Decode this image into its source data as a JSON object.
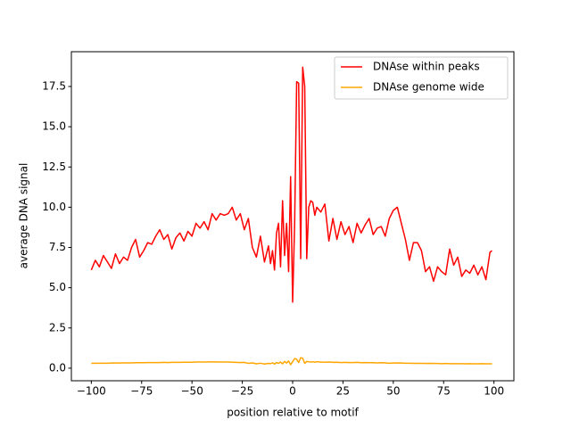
{
  "chart_data": {
    "type": "line",
    "xlabel": "position relative to motif",
    "ylabel": "average DNA signal",
    "x": [
      -100,
      -98,
      -96,
      -94,
      -92,
      -90,
      -88,
      -86,
      -84,
      -82,
      -80,
      -78,
      -76,
      -74,
      -72,
      -70,
      -68,
      -66,
      -64,
      -62,
      -60,
      -58,
      -56,
      -54,
      -52,
      -50,
      -48,
      -46,
      -44,
      -42,
      -40,
      -38,
      -36,
      -34,
      -32,
      -30,
      -28,
      -26,
      -24,
      -22,
      -20,
      -18,
      -16,
      -14,
      -12,
      -11,
      -10,
      -9,
      -8,
      -7,
      -6,
      -5,
      -4,
      -3,
      -2,
      -1,
      0,
      1,
      2,
      3,
      4,
      5,
      6,
      7,
      8,
      9,
      10,
      11,
      12,
      14,
      16,
      18,
      20,
      22,
      24,
      26,
      28,
      30,
      32,
      34,
      36,
      38,
      40,
      42,
      44,
      46,
      48,
      50,
      52,
      54,
      56,
      58,
      60,
      62,
      64,
      66,
      68,
      70,
      72,
      74,
      76,
      78,
      80,
      82,
      84,
      86,
      88,
      90,
      92,
      94,
      96,
      98,
      99
    ],
    "series": [
      {
        "name": "DNAse within peaks",
        "color": "#ff0000",
        "values": [
          6.1,
          6.7,
          6.3,
          7.0,
          6.6,
          6.2,
          7.1,
          6.5,
          6.9,
          6.7,
          7.5,
          8.0,
          6.9,
          7.3,
          7.8,
          7.7,
          8.2,
          8.6,
          8.0,
          8.3,
          7.4,
          8.1,
          8.4,
          7.9,
          8.5,
          8.2,
          9.0,
          8.7,
          9.1,
          8.6,
          9.6,
          9.2,
          9.6,
          9.5,
          9.6,
          10.0,
          9.2,
          9.6,
          8.6,
          9.3,
          7.5,
          6.9,
          8.2,
          6.6,
          7.6,
          6.5,
          7.3,
          6.1,
          8.4,
          9.0,
          6.3,
          10.4,
          7.0,
          9.0,
          6.0,
          11.9,
          4.1,
          9.0,
          17.8,
          17.7,
          6.8,
          18.7,
          17.5,
          6.8,
          10.0,
          10.4,
          10.3,
          9.5,
          10.0,
          9.7,
          10.2,
          7.9,
          9.3,
          8.0,
          9.1,
          8.3,
          8.8,
          7.8,
          9.0,
          8.4,
          8.9,
          9.3,
          8.3,
          8.7,
          8.8,
          8.2,
          9.3,
          9.8,
          10.0,
          9.0,
          8.0,
          6.7,
          7.8,
          7.8,
          7.3,
          6.0,
          6.3,
          5.4,
          6.3,
          6.0,
          5.8,
          7.4,
          6.4,
          6.9,
          5.7,
          6.1,
          5.9,
          6.4,
          5.8,
          6.3,
          5.5,
          7.2,
          7.3
        ]
      },
      {
        "name": "DNAse genome wide",
        "color": "#ffa500",
        "values": [
          0.3,
          0.31,
          0.31,
          0.31,
          0.31,
          0.32,
          0.32,
          0.32,
          0.33,
          0.33,
          0.33,
          0.34,
          0.34,
          0.34,
          0.35,
          0.35,
          0.35,
          0.35,
          0.36,
          0.35,
          0.36,
          0.36,
          0.36,
          0.37,
          0.37,
          0.37,
          0.38,
          0.38,
          0.38,
          0.39,
          0.39,
          0.39,
          0.38,
          0.38,
          0.38,
          0.37,
          0.36,
          0.35,
          0.36,
          0.3,
          0.33,
          0.27,
          0.31,
          0.26,
          0.3,
          0.28,
          0.33,
          0.26,
          0.35,
          0.3,
          0.38,
          0.27,
          0.42,
          0.32,
          0.45,
          0.22,
          0.4,
          0.6,
          0.55,
          0.35,
          0.65,
          0.62,
          0.3,
          0.42,
          0.4,
          0.38,
          0.4,
          0.37,
          0.4,
          0.38,
          0.37,
          0.38,
          0.36,
          0.37,
          0.35,
          0.36,
          0.35,
          0.35,
          0.36,
          0.34,
          0.35,
          0.34,
          0.34,
          0.33,
          0.34,
          0.33,
          0.31,
          0.32,
          0.33,
          0.32,
          0.31,
          0.31,
          0.3,
          0.3,
          0.3,
          0.29,
          0.3,
          0.29,
          0.29,
          0.28,
          0.29,
          0.28,
          0.28,
          0.28,
          0.28,
          0.27,
          0.28,
          0.27,
          0.27,
          0.28,
          0.27,
          0.27,
          0.27
        ]
      }
    ],
    "xlim": [
      -109.9,
      109.9
    ],
    "ylim": [
      -0.78,
      19.66
    ],
    "xticks": [
      {
        "value": -100,
        "label": "−100"
      },
      {
        "value": -75,
        "label": "−75"
      },
      {
        "value": -50,
        "label": "−50"
      },
      {
        "value": -25,
        "label": "−25"
      },
      0,
      25,
      50,
      75,
      100
    ],
    "yticks": [
      {
        "value": 0,
        "label": "0.0"
      },
      2.5,
      {
        "value": 5,
        "label": "5.0"
      },
      7.5,
      {
        "value": 10,
        "label": "10.0"
      },
      12.5,
      {
        "value": 15,
        "label": "15.0"
      },
      17.5
    ],
    "legend": "upper right",
    "grid": false
  }
}
